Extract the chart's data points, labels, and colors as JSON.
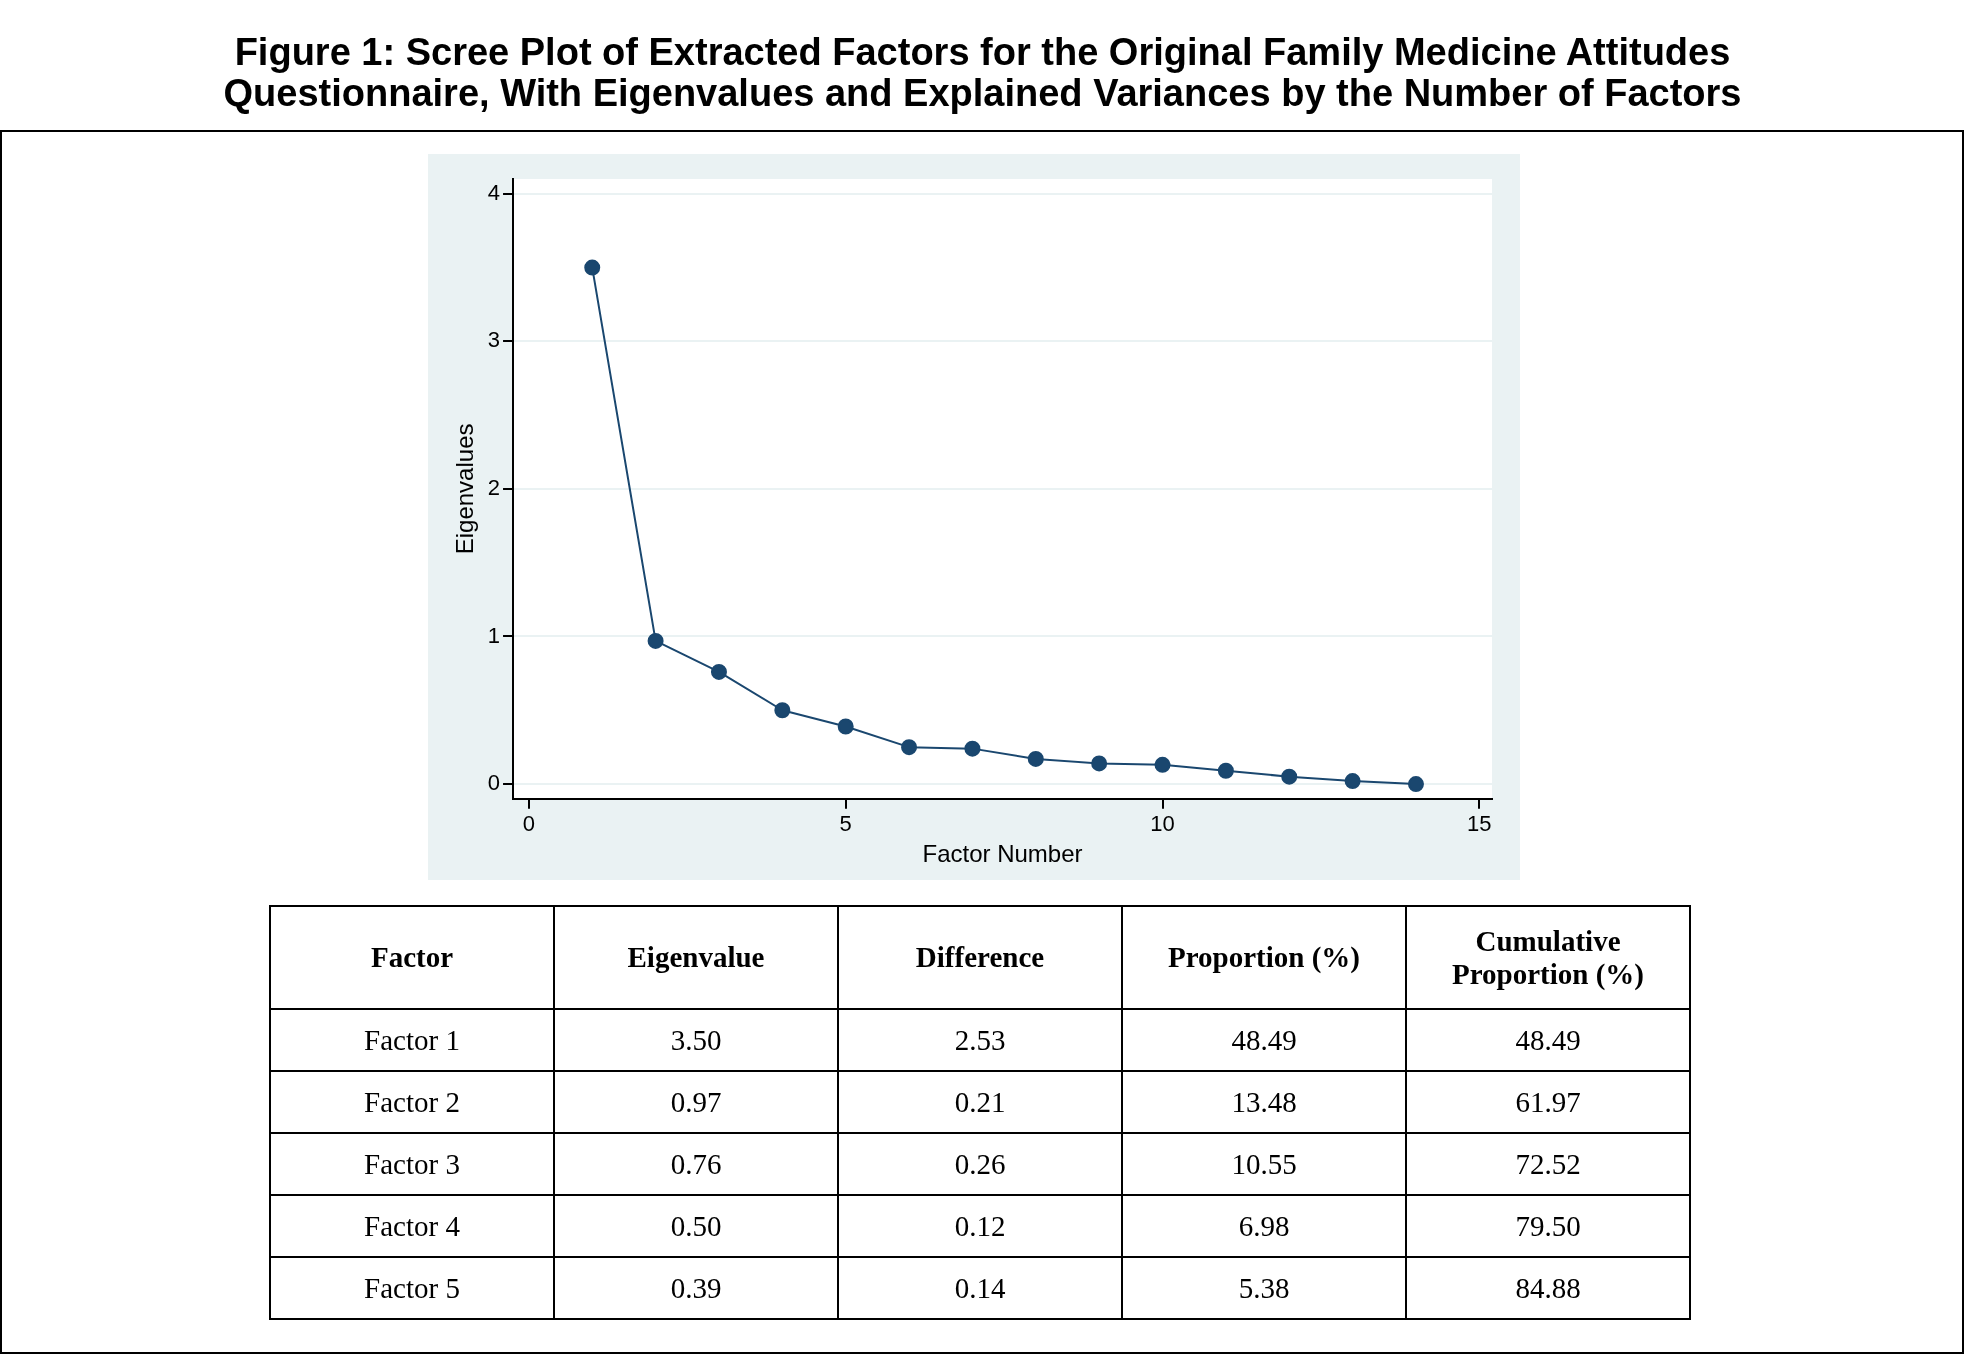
{
  "chart_data": [
    {
      "type": "line",
      "title": "Figure 1: Scree Plot of Extracted Factors for the Original Family Medicine Attitudes Questionnaire, With Eigenvalues and Explained Variances by the Number of Factors",
      "xlabel": "Factor Number",
      "ylabel": "Eigenvalues",
      "x": [
        1,
        2,
        3,
        4,
        5,
        6,
        7,
        8,
        9,
        10,
        11,
        12,
        13,
        14
      ],
      "series": [
        {
          "color": "#1a476f",
          "values": [
            3.5,
            0.97,
            0.76,
            0.5,
            0.39,
            0.25,
            0.24,
            0.17,
            0.14,
            0.13,
            0.09,
            0.05,
            0.02,
            0.0
          ]
        }
      ],
      "xlim": [
        -0.25,
        15.2
      ],
      "xticks": [
        0,
        5,
        10,
        15
      ],
      "ylim": [
        -0.1,
        4.1
      ],
      "yticks": [
        0,
        1,
        2,
        3,
        4
      ],
      "grid": "y",
      "marker": "circle",
      "line_style": "solid"
    },
    {
      "type": "heatmap",
      "ylabel": "Factor",
      "categories": [
        "Eigenvalue",
        "Difference",
        "Proportion (%)",
        "Cumulative Proportion (%)"
      ],
      "y_categories": [
        "Factor 1",
        "Factor 2",
        "Factor 3",
        "Factor 4",
        "Factor 5"
      ],
      "cells": [
        [
          3.5,
          2.53,
          48.49,
          48.49
        ],
        [
          0.97,
          0.21,
          13.48,
          61.97
        ],
        [
          0.76,
          0.26,
          10.55,
          72.52
        ],
        [
          0.5,
          0.12,
          6.98,
          79.5
        ],
        [
          0.39,
          0.14,
          5.38,
          84.88
        ]
      ],
      "cell_labels": [
        [
          "3.50",
          "2.53",
          "48.49",
          "48.49"
        ],
        [
          "0.97",
          "0.21",
          "13.48",
          "61.97"
        ],
        [
          "0.76",
          "0.26",
          "10.55",
          "72.52"
        ],
        [
          "0.50",
          "0.12",
          "6.98",
          "79.50"
        ],
        [
          "0.39",
          "0.14",
          "5.38",
          "84.88"
        ]
      ]
    }
  ]
}
